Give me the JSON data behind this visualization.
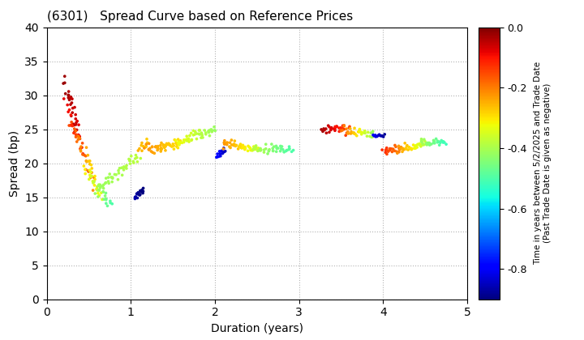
{
  "title": "(6301)   Spread Curve based on Reference Prices",
  "xlabel": "Duration (years)",
  "ylabel": "Spread (bp)",
  "colorbar_label": "Time in years between 5/2/2025 and Trade Date\n(Past Trade Date is given as negative)",
  "xlim": [
    0,
    5
  ],
  "ylim": [
    0,
    40
  ],
  "xticks": [
    0,
    1,
    2,
    3,
    4,
    5
  ],
  "yticks": [
    0,
    5,
    10,
    15,
    20,
    25,
    30,
    35,
    40
  ],
  "colorbar_ticks": [
    0.0,
    -0.2,
    -0.4,
    -0.6,
    -0.8
  ],
  "cmap": "jet",
  "vmin": -0.9,
  "vmax": 0.0,
  "background": "#ffffff",
  "clusters": [
    {
      "dur_s": 0.2,
      "dur_e": 0.38,
      "sp_s": 32,
      "sp_e": 24,
      "c_s": -0.02,
      "c_e": -0.07,
      "n": 20,
      "nd": 0.01,
      "ns": 0.5
    },
    {
      "dur_s": 0.28,
      "dur_e": 0.42,
      "sp_s": 31,
      "sp_e": 22,
      "c_s": -0.04,
      "c_e": -0.1,
      "n": 15,
      "nd": 0.008,
      "ns": 0.5
    },
    {
      "dur_s": 0.22,
      "dur_e": 0.55,
      "sp_s": 29,
      "sp_e": 17,
      "c_s": -0.08,
      "c_e": -0.22,
      "n": 25,
      "nd": 0.012,
      "ns": 0.6
    },
    {
      "dur_s": 0.3,
      "dur_e": 0.65,
      "sp_s": 26,
      "sp_e": 15,
      "c_s": -0.15,
      "c_e": -0.35,
      "n": 30,
      "nd": 0.015,
      "ns": 0.6
    },
    {
      "dur_s": 0.45,
      "dur_e": 0.78,
      "sp_s": 19,
      "sp_e": 14,
      "c_s": -0.3,
      "c_e": -0.5,
      "n": 30,
      "nd": 0.015,
      "ns": 0.4
    },
    {
      "dur_s": 0.6,
      "dur_e": 1.1,
      "sp_s": 16,
      "sp_e": 21,
      "c_s": -0.42,
      "c_e": -0.38,
      "n": 45,
      "nd": 0.018,
      "ns": 0.4
    },
    {
      "dur_s": 1.05,
      "dur_e": 1.15,
      "sp_s": 15,
      "sp_e": 16,
      "c_s": -0.86,
      "c_e": -0.92,
      "n": 18,
      "nd": 0.004,
      "ns": 0.25
    },
    {
      "dur_s": 1.1,
      "dur_e": 1.2,
      "sp_s": 22,
      "sp_e": 23,
      "c_s": -0.25,
      "c_e": -0.28,
      "n": 10,
      "nd": 0.008,
      "ns": 0.3
    },
    {
      "dur_s": 1.18,
      "dur_e": 1.6,
      "sp_s": 22,
      "sp_e": 23,
      "c_s": -0.22,
      "c_e": -0.3,
      "n": 50,
      "nd": 0.018,
      "ns": 0.4
    },
    {
      "dur_s": 1.55,
      "dur_e": 2.0,
      "sp_s": 23,
      "sp_e": 25,
      "c_s": -0.32,
      "c_e": -0.42,
      "n": 50,
      "nd": 0.018,
      "ns": 0.4
    },
    {
      "dur_s": 2.02,
      "dur_e": 2.12,
      "sp_s": 21,
      "sp_e": 22,
      "c_s": -0.78,
      "c_e": -0.85,
      "n": 15,
      "nd": 0.004,
      "ns": 0.25
    },
    {
      "dur_s": 2.1,
      "dur_e": 2.5,
      "sp_s": 23,
      "sp_e": 22,
      "c_s": -0.22,
      "c_e": -0.35,
      "n": 45,
      "nd": 0.018,
      "ns": 0.3
    },
    {
      "dur_s": 2.45,
      "dur_e": 2.92,
      "sp_s": 22,
      "sp_e": 22,
      "c_s": -0.38,
      "c_e": -0.5,
      "n": 45,
      "nd": 0.018,
      "ns": 0.3
    },
    {
      "dur_s": 3.28,
      "dur_e": 3.58,
      "sp_s": 25,
      "sp_e": 25,
      "c_s": -0.03,
      "c_e": -0.15,
      "n": 30,
      "nd": 0.015,
      "ns": 0.35
    },
    {
      "dur_s": 3.52,
      "dur_e": 3.88,
      "sp_s": 25,
      "sp_e": 24,
      "c_s": -0.18,
      "c_e": -0.42,
      "n": 35,
      "nd": 0.015,
      "ns": 0.35
    },
    {
      "dur_s": 3.88,
      "dur_e": 4.02,
      "sp_s": 24,
      "sp_e": 24,
      "c_s": -0.8,
      "c_e": -0.88,
      "n": 12,
      "nd": 0.004,
      "ns": 0.2
    },
    {
      "dur_s": 4.0,
      "dur_e": 4.2,
      "sp_s": 22,
      "sp_e": 22,
      "c_s": -0.12,
      "c_e": -0.2,
      "n": 20,
      "nd": 0.012,
      "ns": 0.3
    },
    {
      "dur_s": 4.18,
      "dur_e": 4.5,
      "sp_s": 22,
      "sp_e": 23,
      "c_s": -0.22,
      "c_e": -0.38,
      "n": 35,
      "nd": 0.015,
      "ns": 0.3
    },
    {
      "dur_s": 4.45,
      "dur_e": 4.75,
      "sp_s": 23,
      "sp_e": 23,
      "c_s": -0.4,
      "c_e": -0.52,
      "n": 30,
      "nd": 0.015,
      "ns": 0.3
    }
  ]
}
